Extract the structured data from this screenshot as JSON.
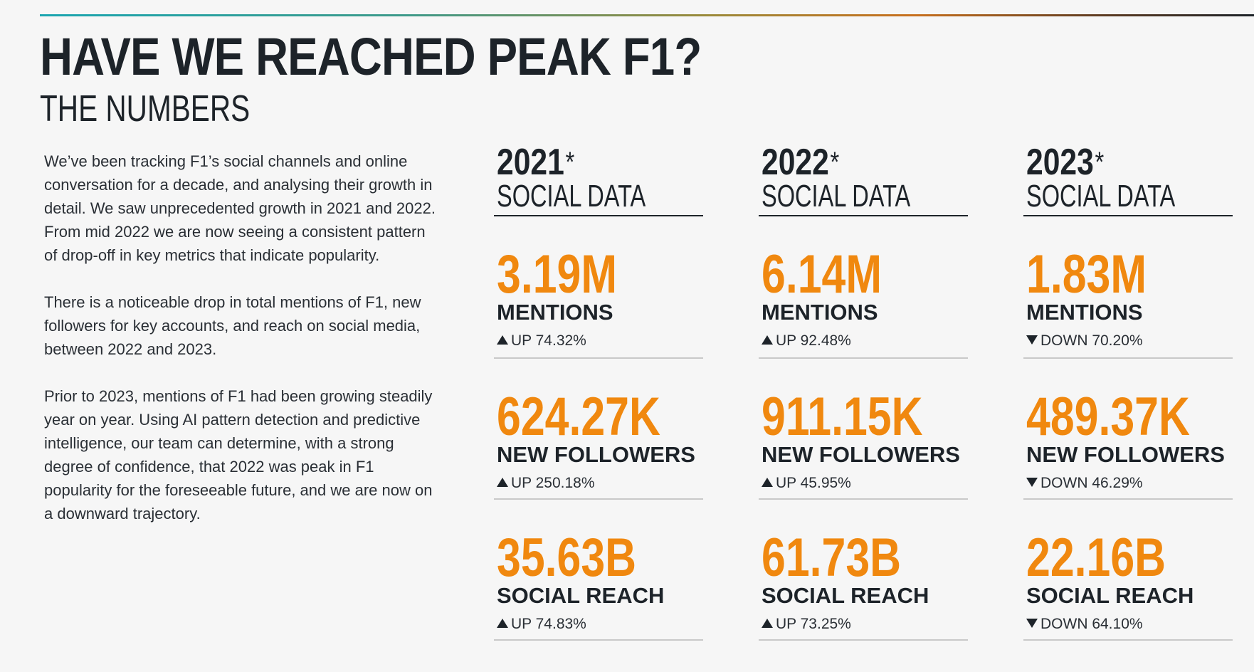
{
  "colors": {
    "accent": "#f0880f",
    "text": "#1d2329",
    "divider": "#c9c9c9"
  },
  "header": {
    "title": "HAVE WE REACHED PEAK F1?",
    "subtitle": "THE NUMBERS"
  },
  "intro": {
    "paragraphs": [
      "We’ve been tracking F1’s social channels and online conversation for a decade, and analysing their growth in detail. We saw unprecedented growth in 2021 and 2022. From mid 2022 we are now seeing a consistent pattern of drop-off in key metrics that indicate popularity.",
      "There is a noticeable drop in total mentions of F1, new followers for key accounts, and reach on social media, between 2022 and 2023.",
      "Prior to 2023, mentions of F1 had been growing steadily year on year. Using AI pattern detection and predictive intelligence,  our team can determine, with a strong degree of confidence, that 2022 was peak in F1 popularity for the foreseeable future, and we are now on a downward trajectory."
    ]
  },
  "columns": [
    {
      "year": "2021",
      "star": "*",
      "label": "SOCIAL DATA",
      "stats": [
        {
          "value": "3.19M",
          "label": "MENTIONS",
          "direction": "up",
          "change": "UP 74.32%"
        },
        {
          "value": "624.27K",
          "label": "NEW FOLLOWERS",
          "direction": "up",
          "change": "UP 250.18%"
        },
        {
          "value": "35.63B",
          "label": "SOCIAL REACH",
          "direction": "up",
          "change": "UP 74.83%"
        }
      ]
    },
    {
      "year": "2022",
      "star": "*",
      "label": "SOCIAL DATA",
      "stats": [
        {
          "value": "6.14M",
          "label": "MENTIONS",
          "direction": "up",
          "change": "UP 92.48%"
        },
        {
          "value": "911.15K",
          "label": "NEW FOLLOWERS",
          "direction": "up",
          "change": "UP 45.95%"
        },
        {
          "value": "61.73B",
          "label": "SOCIAL REACH",
          "direction": "up",
          "change": "UP 73.25%"
        }
      ]
    },
    {
      "year": "2023",
      "star": "*",
      "label": "SOCIAL DATA",
      "stats": [
        {
          "value": "1.83M",
          "label": "MENTIONS",
          "direction": "down",
          "change": "DOWN 70.20%"
        },
        {
          "value": "489.37K",
          "label": "NEW FOLLOWERS",
          "direction": "down",
          "change": "DOWN 46.29%"
        },
        {
          "value": "22.16B",
          "label": "SOCIAL REACH",
          "direction": "down",
          "change": "DOWN 64.10%"
        }
      ]
    }
  ]
}
